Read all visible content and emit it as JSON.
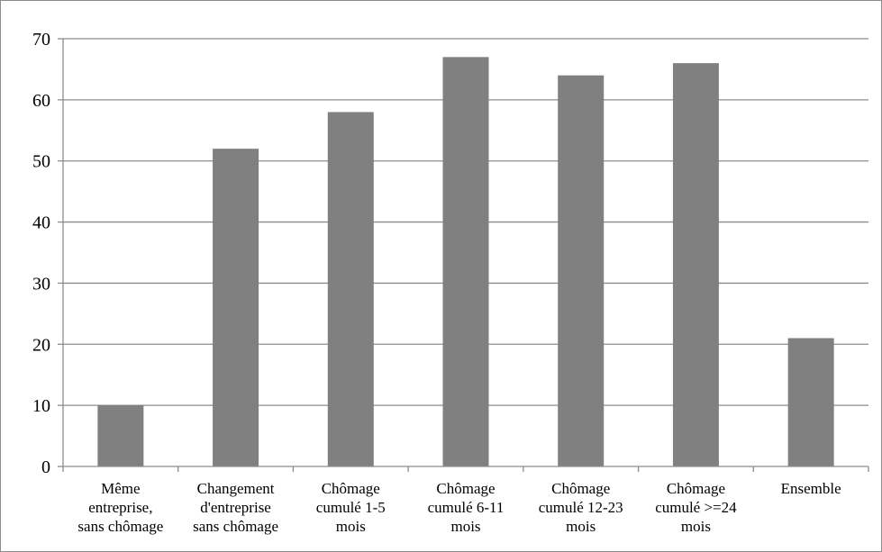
{
  "chart_data": {
    "type": "bar",
    "categories": [
      "Même entreprise, sans chômage",
      "Changement d'entreprise sans chômage",
      "Chômage cumulé 1-5 mois",
      "Chômage cumulé 6-11 mois",
      "Chômage cumulé 12-23 mois",
      "Chômage cumulé >=24 mois",
      "Ensemble"
    ],
    "category_lines": [
      [
        "Même",
        "entreprise,",
        "sans chômage"
      ],
      [
        "Changement",
        "d'entreprise",
        "sans chômage"
      ],
      [
        "Chômage",
        "cumulé 1-5",
        "mois"
      ],
      [
        "Chômage",
        "cumulé 6-11",
        "mois"
      ],
      [
        "Chômage",
        "cumulé 12-23",
        "mois"
      ],
      [
        "Chômage",
        "cumulé >=24",
        "mois"
      ],
      [
        "Ensemble"
      ]
    ],
    "values": [
      10,
      52,
      58,
      67,
      64,
      66,
      21
    ],
    "ylim": [
      0,
      70
    ],
    "yticks": [
      0,
      10,
      20,
      30,
      40,
      50,
      60,
      70
    ],
    "title": "",
    "xlabel": "",
    "ylabel": "",
    "grid": true,
    "legend": "none",
    "colors": {
      "bar": "#808080",
      "grid": "#8c8c8c",
      "axis": "#8c8c8c"
    }
  }
}
